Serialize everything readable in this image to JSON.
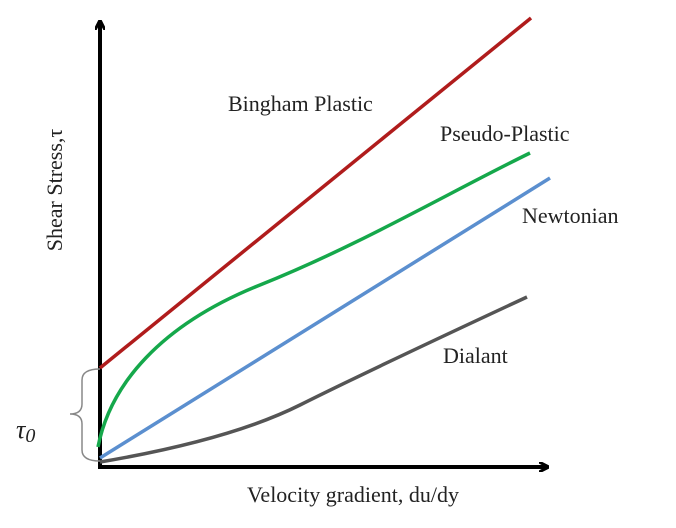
{
  "axes": {
    "x_label": "Velocity gradient, du/dy",
    "y_label": "Shear Stress,τ"
  },
  "curves": [
    {
      "label": "Bingham Plastic"
    },
    {
      "label": "Pseudo-Plastic"
    },
    {
      "label": "Newtonian"
    },
    {
      "label": "Dialant"
    }
  ],
  "yield_stress": {
    "symbol": "τ",
    "subscript": "0"
  }
}
